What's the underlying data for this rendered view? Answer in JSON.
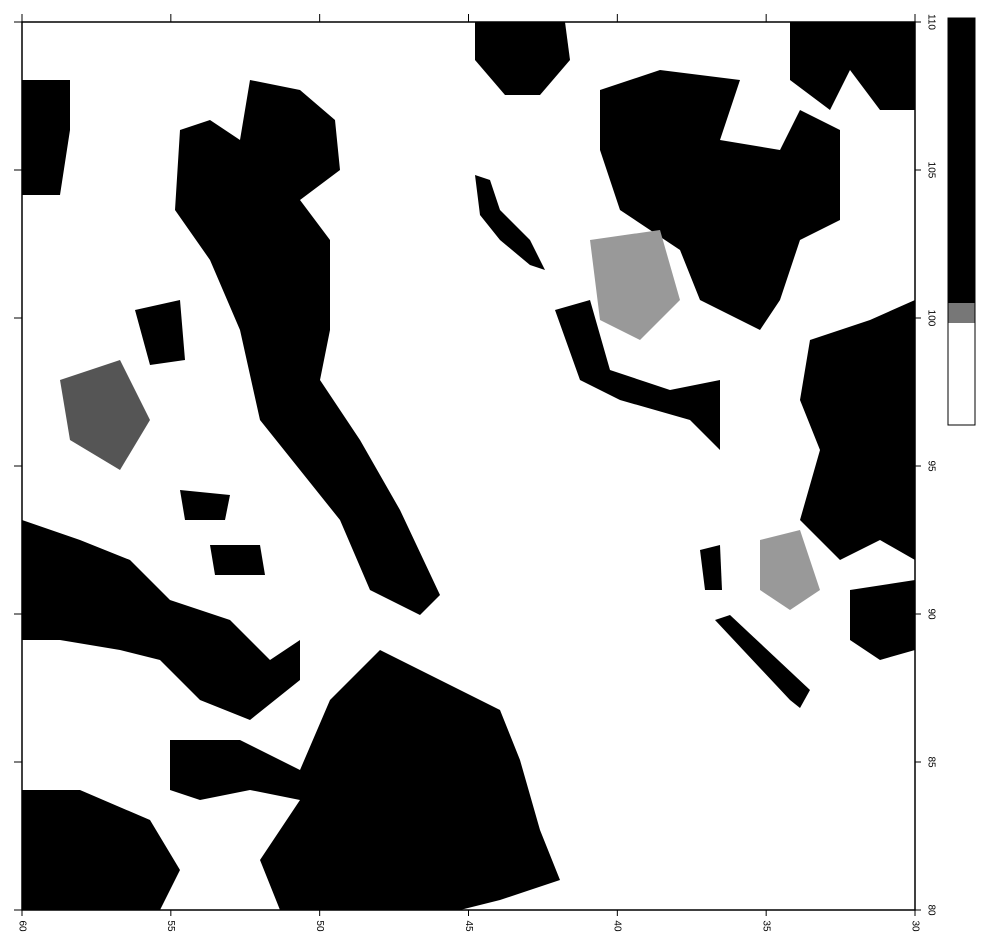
{
  "chart_data": {
    "type": "raster",
    "xlim": [
      60,
      30
    ],
    "ylim": [
      80,
      110
    ],
    "xticks": [
      60,
      55,
      50,
      45,
      40,
      35,
      30
    ],
    "yticks": [
      80,
      85,
      90,
      95,
      100,
      105,
      110
    ]
  }
}
